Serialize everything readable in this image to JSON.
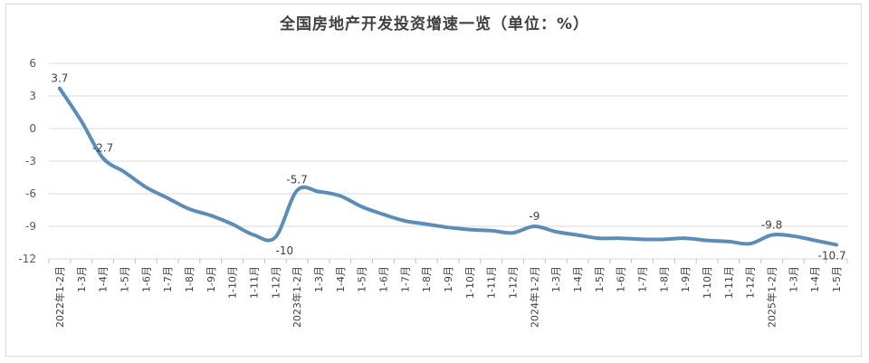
{
  "chart_data": {
    "type": "line",
    "title": "全国房地产开发投资增速一览（单位：%）",
    "xlabel": "",
    "ylabel": "",
    "ylim": [
      -12,
      6
    ],
    "yticks": [
      6,
      3,
      0,
      -3,
      -6,
      -9,
      -12
    ],
    "grid": true,
    "legend": "none",
    "line_color": "#5b8db8",
    "categories": [
      "2022年1-2月",
      "1-3月",
      "1-4月",
      "1-5月",
      "1-6月",
      "1-7月",
      "1-8月",
      "1-9月",
      "1-10月",
      "1-11月",
      "1-12月",
      "2023年1-2月",
      "1-3月",
      "1-4月",
      "1-5月",
      "1-6月",
      "1-7月",
      "1-8月",
      "1-9月",
      "1-10月",
      "1-11月",
      "1-12月",
      "2024年1-2月",
      "1-3月",
      "1-4月",
      "1-5月",
      "1-6月",
      "1-7月",
      "1-8月",
      "1-9月",
      "1-10月",
      "1-11月",
      "1-12月",
      "2025年1-2月",
      "1-3月",
      "1-4月",
      "1-5月"
    ],
    "values": [
      3.7,
      0.7,
      -2.7,
      -4.0,
      -5.4,
      -6.4,
      -7.4,
      -8.0,
      -8.8,
      -9.8,
      -10.0,
      -5.7,
      -5.8,
      -6.2,
      -7.2,
      -7.9,
      -8.5,
      -8.8,
      -9.1,
      -9.3,
      -9.4,
      -9.6,
      -9.0,
      -9.5,
      -9.8,
      -10.1,
      -10.1,
      -10.2,
      -10.2,
      -10.1,
      -10.3,
      -10.4,
      -10.6,
      -9.8,
      -9.9,
      -10.3,
      -10.7
    ],
    "data_labels": [
      {
        "index": 0,
        "text": "3.7"
      },
      {
        "index": 2,
        "text": "-2.7"
      },
      {
        "index": 10,
        "text": "-10"
      },
      {
        "index": 11,
        "text": "-5.7"
      },
      {
        "index": 22,
        "text": "-9"
      },
      {
        "index": 33,
        "text": "-9.8"
      },
      {
        "index": 36,
        "text": "-10.7"
      }
    ]
  }
}
